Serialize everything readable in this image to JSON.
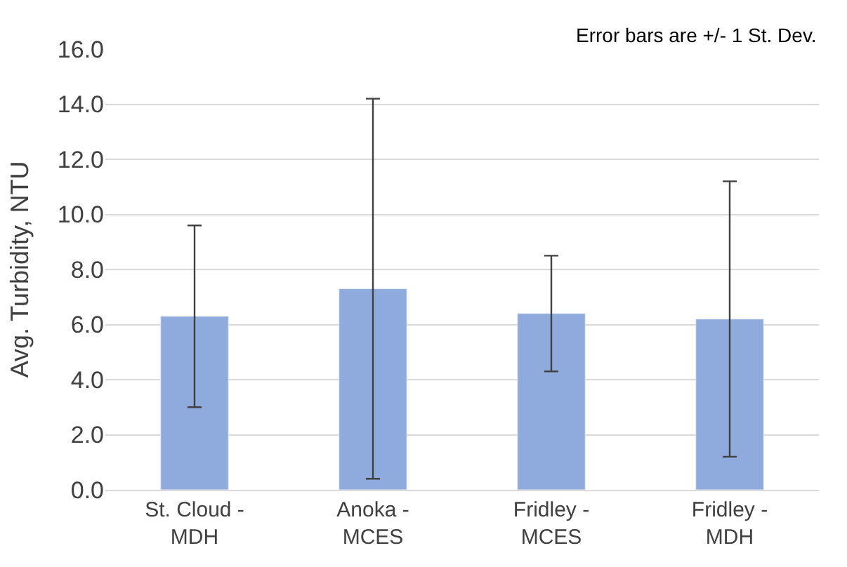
{
  "chart_data": {
    "type": "bar",
    "ylabel": "Avg. Turbidity, NTU",
    "categories": [
      "St. Cloud -\nMDH",
      "Anoka -\nMCES",
      "Fridley -\nMCES",
      "Fridley -\nMDH"
    ],
    "values": [
      6.3,
      7.3,
      6.4,
      6.2
    ],
    "errors": [
      3.3,
      6.9,
      2.1,
      5.0
    ],
    "color": "#8faadc",
    "ylim": [
      0,
      16
    ],
    "yticks": [
      {
        "value": 0,
        "label": "0.0"
      },
      {
        "value": 2,
        "label": "2.0"
      },
      {
        "value": 4,
        "label": "4.0"
      },
      {
        "value": 6,
        "label": "6.0"
      },
      {
        "value": 8,
        "label": "8.0"
      },
      {
        "value": 10,
        "label": "10.0"
      },
      {
        "value": 12,
        "label": "12.0"
      },
      {
        "value": 14,
        "label": "14.0"
      },
      {
        "value": 16,
        "label": "16.0"
      }
    ],
    "grid": "y",
    "annotations": [
      "Error bars are +/- 1 St. Dev."
    ]
  }
}
